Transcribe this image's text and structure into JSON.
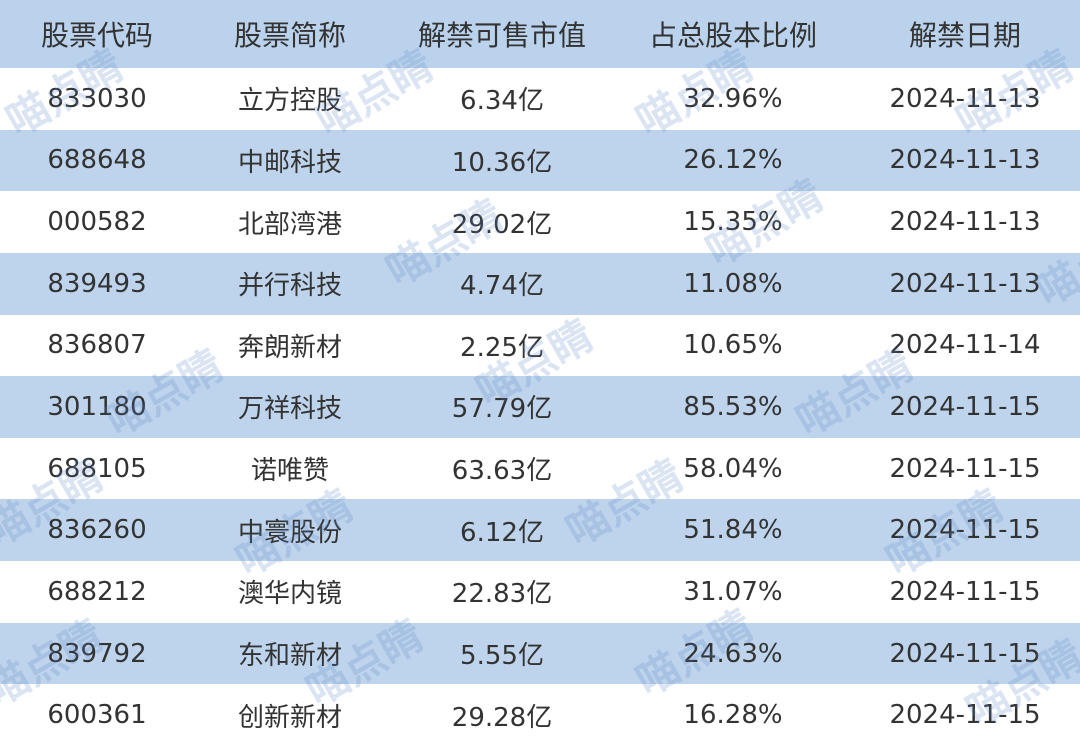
{
  "table": {
    "header": [
      "股票代码",
      "股票简称",
      "解禁可售市值",
      "占总股本比例",
      "解禁日期"
    ],
    "rows": [
      [
        "833030",
        "立方控股",
        "6.34亿",
        "32.96%",
        "2024-11-13"
      ],
      [
        "688648",
        "中邮科技",
        "10.36亿",
        "26.12%",
        "2024-11-13"
      ],
      [
        "000582",
        "北部湾港",
        "29.02亿",
        "15.35%",
        "2024-11-13"
      ],
      [
        "839493",
        "并行科技",
        "4.74亿",
        "11.08%",
        "2024-11-13"
      ],
      [
        "836807",
        "奔朗新材",
        "2.25亿",
        "10.65%",
        "2024-11-14"
      ],
      [
        "301180",
        "万祥科技",
        "57.79亿",
        "85.53%",
        "2024-11-15"
      ],
      [
        "688105",
        "诺唯赞",
        "63.63亿",
        "58.04%",
        "2024-11-15"
      ],
      [
        "836260",
        "中寰股份",
        "6.12亿",
        "51.84%",
        "2024-11-15"
      ],
      [
        "688212",
        "澳华内镜",
        "22.83亿",
        "31.07%",
        "2024-11-15"
      ],
      [
        "839792",
        "东和新材",
        "5.55亿",
        "24.63%",
        "2024-11-15"
      ],
      [
        "600361",
        "创新新材",
        "29.28亿",
        "16.28%",
        "2024-11-15"
      ]
    ]
  },
  "watermark": "喵点睛"
}
